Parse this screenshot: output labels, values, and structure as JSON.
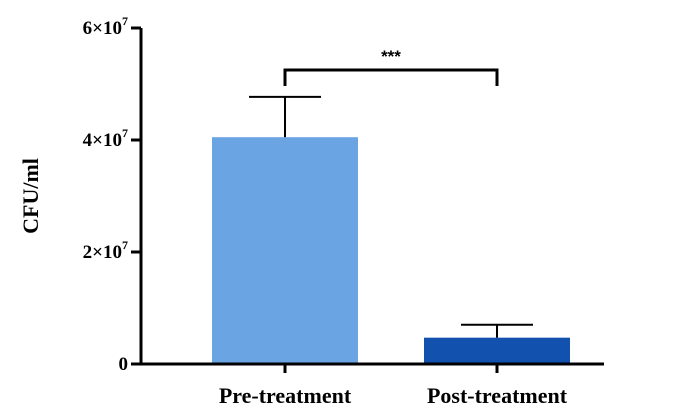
{
  "chart_data": {
    "type": "bar",
    "title": "",
    "xlabel": "",
    "ylabel": "CFU/ml",
    "ylim": [
      0,
      60000000
    ],
    "grid": false,
    "categories": [
      "Pre-treatment",
      "Post-treatment"
    ],
    "values": [
      40500000,
      4700000
    ],
    "errors": [
      7200000,
      2300000
    ],
    "colors": [
      "#6aa4e2",
      "#1251ad"
    ],
    "y_ticks": [
      {
        "value": 0,
        "base": "0",
        "sup": ""
      },
      {
        "value": 20000000,
        "base": "2×10",
        "sup": "7"
      },
      {
        "value": 40000000,
        "base": "4×10",
        "sup": "7"
      },
      {
        "value": 60000000,
        "base": "6×10",
        "sup": "7"
      }
    ],
    "annotations": [
      {
        "type": "significance",
        "between": [
          "Pre-treatment",
          "Post-treatment"
        ],
        "text": "***"
      }
    ]
  }
}
